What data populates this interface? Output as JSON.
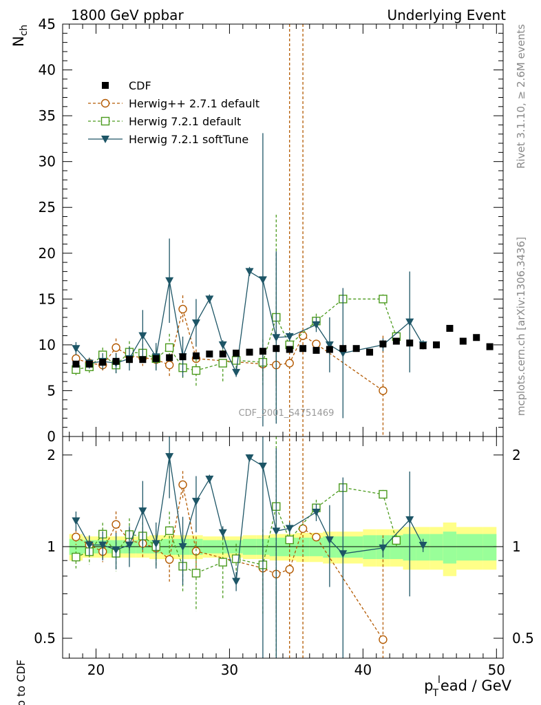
{
  "header": {
    "left": "1800 GeV ppbar",
    "right": "Underlying Event"
  },
  "side_labels": {
    "rivet": "Rivet 3.1.10, ≥ 2.6M events",
    "mcplots": "mcplots.cern.ch [arXiv:1306.3436]"
  },
  "watermark": "CDF_2001_S4751469",
  "axes": {
    "main_ylabel": "N",
    "main_ylabel_sub": "ch",
    "ratio_ylabel": "Ratio to CDF",
    "xlabel_p": "p",
    "xlabel_sub": "T",
    "xlabel_sup": "l",
    "xlabel_rest": "ead / GeV"
  },
  "legend": [
    {
      "key": "cdf",
      "label": "CDF"
    },
    {
      "key": "hpp",
      "label": "Herwig++ 2.7.1 default"
    },
    {
      "key": "h72",
      "label": "Herwig 7.2.1 default"
    },
    {
      "key": "h7s",
      "label": "Herwig 7.2.1 softTune"
    }
  ],
  "colors": {
    "cdf": "#000000",
    "hpp": "#b35900",
    "h72": "#4a9a1c",
    "h7s": "#1d5566",
    "band_inner": "#99ff99",
    "band_outer": "#ffff88"
  },
  "chart_data": {
    "type": "scatter",
    "xlim": [
      17.5,
      50.5
    ],
    "ylim_main": [
      0,
      45
    ],
    "ylim_ratio_log": [
      0.43,
      2.3
    ],
    "xticks": [
      20,
      30,
      40,
      50
    ],
    "yticks_main": [
      0,
      5,
      10,
      15,
      20,
      25,
      30,
      35,
      40,
      45
    ],
    "yticks_ratio": [
      0.5,
      1,
      2
    ],
    "vlines_hpp": [
      34.5,
      35.5
    ],
    "cdf": {
      "x": [
        18.5,
        19.5,
        20.5,
        21.5,
        22.5,
        23.5,
        24.5,
        25.5,
        26.5,
        27.5,
        28.5,
        29.5,
        30.5,
        31.5,
        32.5,
        33.5,
        34.5,
        35.5,
        36.5,
        37.5,
        38.5,
        39.5,
        40.5,
        41.5,
        42.5,
        43.5,
        44.5,
        45.5,
        46.5,
        47.5,
        48.5,
        49.5
      ],
      "y": [
        7.9,
        7.9,
        8.1,
        8.2,
        8.4,
        8.4,
        8.5,
        8.6,
        8.7,
        8.8,
        9.0,
        9.0,
        9.1,
        9.2,
        9.3,
        9.6,
        9.5,
        9.6,
        9.4,
        9.5,
        9.6,
        9.6,
        9.2,
        10.1,
        10.4,
        10.2,
        9.9,
        10.0,
        11.8,
        10.4,
        10.8,
        9.8
      ],
      "band_inner": [
        0.06,
        0.05,
        0.05,
        0.05,
        0.05,
        0.05,
        0.05,
        0.06,
        0.06,
        0.06,
        0.05,
        0.05,
        0.05,
        0.06,
        0.06,
        0.07,
        0.07,
        0.07,
        0.07,
        0.08,
        0.08,
        0.08,
        0.09,
        0.09,
        0.09,
        0.1,
        0.1,
        0.1,
        0.12,
        0.1,
        0.1,
        0.1
      ],
      "band_outer": [
        0.1,
        0.08,
        0.08,
        0.08,
        0.08,
        0.08,
        0.09,
        0.09,
        0.09,
        0.09,
        0.08,
        0.08,
        0.08,
        0.09,
        0.09,
        0.1,
        0.1,
        0.11,
        0.11,
        0.12,
        0.12,
        0.12,
        0.14,
        0.14,
        0.14,
        0.16,
        0.16,
        0.16,
        0.2,
        0.16,
        0.16,
        0.16
      ]
    },
    "series": [
      {
        "key": "hpp",
        "name": "Herwig++ 2.7.1 default",
        "x": [
          18.5,
          19.5,
          20.5,
          21.5,
          22.5,
          23.5,
          24.5,
          25.5,
          26.5,
          27.5,
          32.5,
          33.5,
          34.5,
          35.5,
          36.5,
          41.5
        ],
        "y": [
          8.5,
          8.0,
          7.8,
          9.7,
          8.8,
          8.6,
          8.4,
          7.8,
          13.9,
          8.5,
          7.9,
          7.8,
          8.0,
          11.0,
          10.1,
          5.0
        ],
        "err": [
          0.5,
          0.5,
          0.6,
          1.0,
          0.8,
          0.9,
          1.0,
          1.2,
          1.5,
          1.0,
          1.5,
          2.0,
          0.3,
          0.4,
          0.3,
          6.0
        ]
      },
      {
        "key": "h72",
        "name": "Herwig 7.2.1 default",
        "x": [
          18.5,
          19.5,
          20.5,
          21.5,
          22.5,
          23.5,
          24.5,
          25.5,
          26.5,
          27.5,
          29.5,
          30.5,
          32.5,
          33.5,
          34.5,
          36.5,
          38.5,
          41.5,
          42.5
        ],
        "y": [
          7.3,
          7.6,
          8.9,
          7.8,
          9.2,
          9.1,
          8.5,
          9.7,
          7.5,
          7.2,
          8.0,
          8.3,
          8.1,
          13.0,
          10.0,
          12.6,
          15.0,
          15.0,
          10.9
        ],
        "err": [
          0.6,
          0.7,
          0.8,
          1.0,
          1.2,
          1.0,
          1.2,
          1.5,
          1.3,
          1.8,
          2.0,
          1.0,
          2.5,
          11.2,
          0.5,
          0.8,
          0.5,
          0.5,
          0.5
        ]
      },
      {
        "key": "h7s",
        "name": "Herwig 7.2.1 softTune",
        "x": [
          18.5,
          19.5,
          20.5,
          21.5,
          22.5,
          23.5,
          24.5,
          25.5,
          26.5,
          27.5,
          28.5,
          29.5,
          30.5,
          31.5,
          32.5,
          33.5,
          34.5,
          36.5,
          37.5,
          38.5,
          41.5,
          43.5,
          44.5
        ],
        "y": [
          9.6,
          8.0,
          8.2,
          8.0,
          8.5,
          11.0,
          8.7,
          17.0,
          8.7,
          12.4,
          15.0,
          10.0,
          7.0,
          18.0,
          17.1,
          10.8,
          10.9,
          12.2,
          10.0,
          9.1,
          10.0,
          12.5,
          10.0
        ],
        "err": [
          0.7,
          0.6,
          0.9,
          1.1,
          1.3,
          2.8,
          1.5,
          4.6,
          2.2,
          2.6,
          0.5,
          0.5,
          0.5,
          0.5,
          16.0,
          9.4,
          0.5,
          0.8,
          3.0,
          7.1,
          0.7,
          5.5,
          0.5
        ]
      }
    ]
  }
}
